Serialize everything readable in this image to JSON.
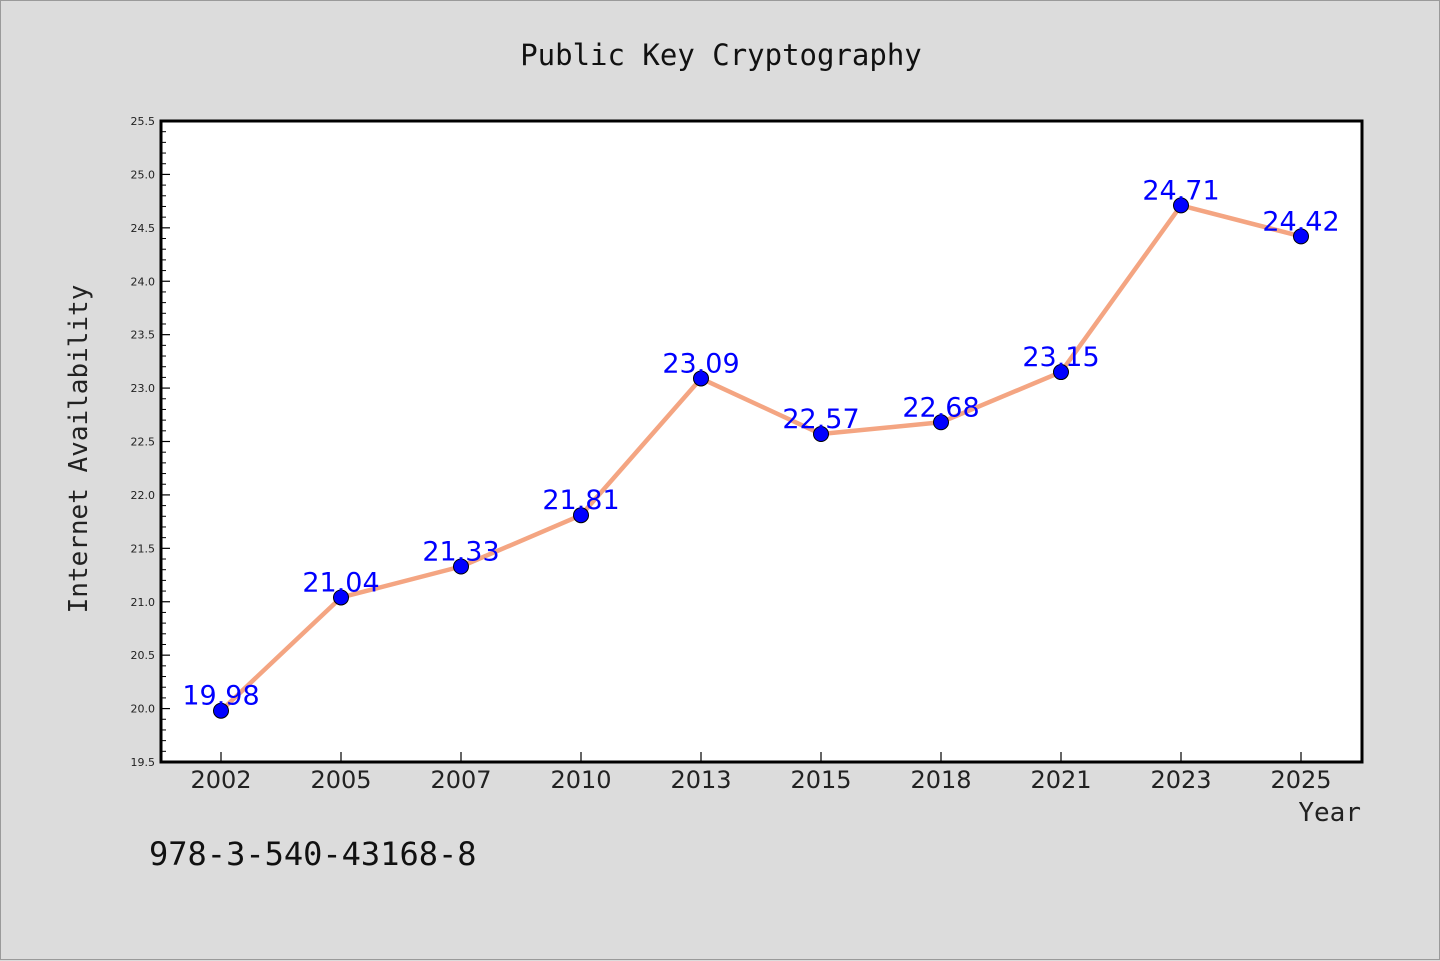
{
  "chart_data": {
    "type": "line",
    "title": "Public Key Cryptography",
    "xlabel": "Year",
    "ylabel": "Internet Availability",
    "categories": [
      "2002",
      "2005",
      "2007",
      "2010",
      "2013",
      "2015",
      "2018",
      "2021",
      "2023",
      "2025"
    ],
    "values": [
      19.98,
      21.04,
      21.33,
      21.81,
      23.09,
      22.57,
      22.68,
      23.15,
      24.71,
      24.42
    ],
    "data_labels": [
      "19.98",
      "21.04",
      "21.33",
      "21.81",
      "23.09",
      "22.57",
      "22.68",
      "23.15",
      "24.71",
      "24.42"
    ],
    "ylim": [
      19.5,
      25.5
    ],
    "yticks": [
      "19.5",
      "20.0",
      "20.5",
      "21.0",
      "21.5",
      "22.0",
      "22.5",
      "23.0",
      "23.5",
      "24.0",
      "24.5",
      "25.0",
      "25.5"
    ],
    "grid": false,
    "line_color": "#f4a582",
    "marker_color": "#0000ff",
    "label_color": "#0000ff"
  },
  "footnote": "978-3-540-43168-8"
}
